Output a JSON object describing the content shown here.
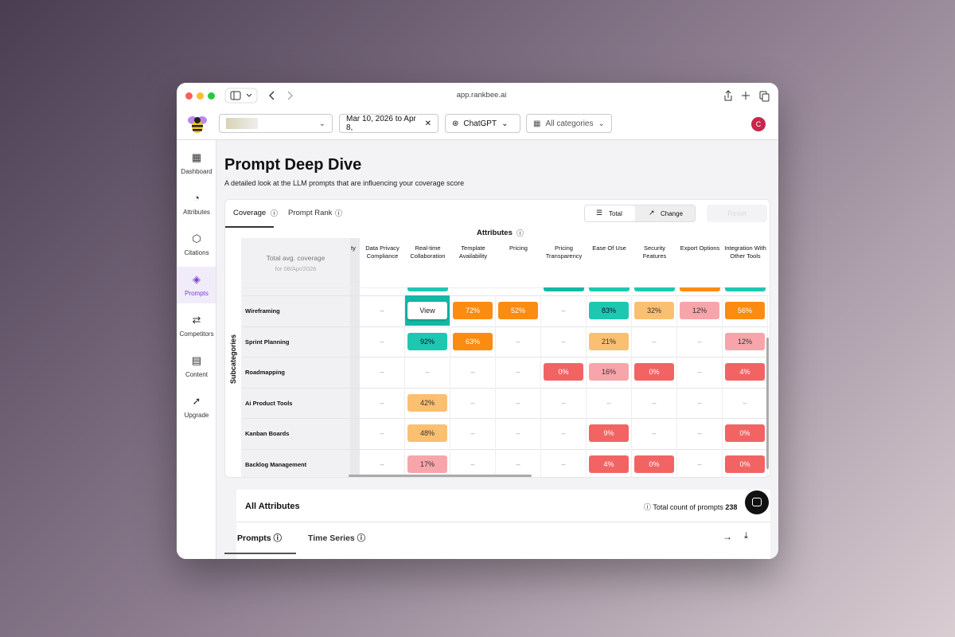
{
  "browser": {
    "url": "app.rankbee.ai"
  },
  "toolbar": {
    "date_range": "Mar 10, 2026 to Apr 8,",
    "model": "ChatGPT",
    "category": "All categories",
    "avatar": "C"
  },
  "sidebar": {
    "items": [
      "Dashboard",
      "Attributes",
      "Citations",
      "Prompts",
      "Competitors",
      "Content",
      "Upgrade"
    ],
    "active": "Prompts"
  },
  "header": {
    "title": "Prompt Deep Dive",
    "subtitle": "A detailed look at the LLM prompts that are influencing your coverage score"
  },
  "card": {
    "tabs": [
      "Coverage",
      "Prompt Rank"
    ],
    "toggle": [
      "Total",
      "Change"
    ],
    "button": "Reset"
  },
  "table": {
    "attributes_label": "Attributes",
    "subcategories_label": "Subcategories",
    "corner": "Total avg. coverage",
    "corner_sub": "for 08/Apr/2026",
    "partial_column": "ty",
    "columns": [
      "Data Privacy Compliance",
      "Real-time Collaboration",
      "Template Availability",
      "Pricing",
      "Pricing Transparency",
      "Ease Of Use",
      "Security Features",
      "Export Options",
      "Integration With Other Tools"
    ],
    "rows": [
      {
        "name": "Wireframing",
        "cells": [
          "–",
          "View",
          "72%",
          "52%",
          "–",
          "83%",
          "32%",
          "12%",
          "56%"
        ]
      },
      {
        "name": "Sprint Planning",
        "cells": [
          "–",
          "92%",
          "63%",
          "–",
          "–",
          "21%",
          "–",
          "–",
          "12%"
        ]
      },
      {
        "name": "Roadmapping",
        "cells": [
          "–",
          "–",
          "–",
          "–",
          "0%",
          "16%",
          "0%",
          "–",
          "4%"
        ]
      },
      {
        "name": "Ai Product Tools",
        "cells": [
          "–",
          "42%",
          "–",
          "–",
          "–",
          "–",
          "–",
          "–",
          "–"
        ]
      },
      {
        "name": "Kanban Boards",
        "cells": [
          "–",
          "48%",
          "–",
          "–",
          "–",
          "9%",
          "–",
          "–",
          "0%"
        ]
      },
      {
        "name": "Backlog Management",
        "cells": [
          "–",
          "17%",
          "–",
          "–",
          "–",
          "4%",
          "0%",
          "–",
          "0%"
        ]
      }
    ]
  },
  "footer": {
    "title": "All Attributes",
    "count_label": "Total count of prompts",
    "count": "238",
    "tabs": [
      "Prompts",
      "Time Series"
    ]
  }
}
